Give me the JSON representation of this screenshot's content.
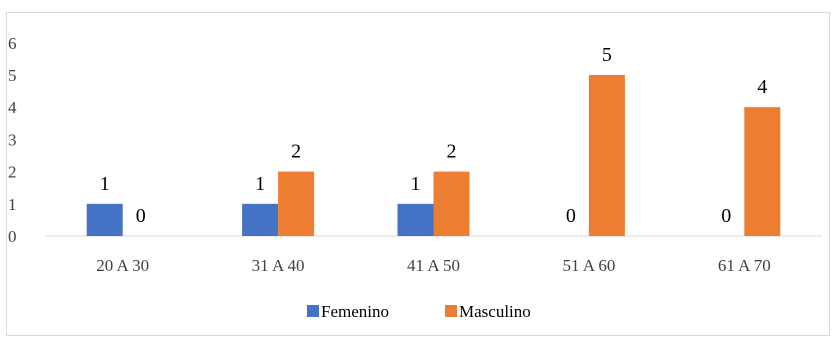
{
  "chart_data": {
    "type": "bar",
    "categories": [
      "20 A 30",
      "31 A 40",
      "41 A 50",
      "51 A 60",
      "61 A 70"
    ],
    "series": [
      {
        "name": "Femenino",
        "values": [
          1,
          1,
          1,
          0,
          0
        ],
        "color": "#4472C4"
      },
      {
        "name": "Masculino",
        "values": [
          0,
          2,
          2,
          5,
          4
        ],
        "color": "#ED7D31"
      }
    ],
    "y_tick_labels": [
      "0",
      "1",
      "2",
      "3",
      "4",
      "5",
      "6"
    ],
    "data_labels": {
      "Femenino": [
        "1",
        "1",
        "1",
        "0",
        "0"
      ],
      "Masculino": [
        "0",
        "2",
        "2",
        "5",
        "4"
      ]
    },
    "title": "",
    "xlabel": "",
    "ylabel": "",
    "ylim": [
      0,
      6
    ],
    "grid": false,
    "legend_position": "bottom"
  }
}
